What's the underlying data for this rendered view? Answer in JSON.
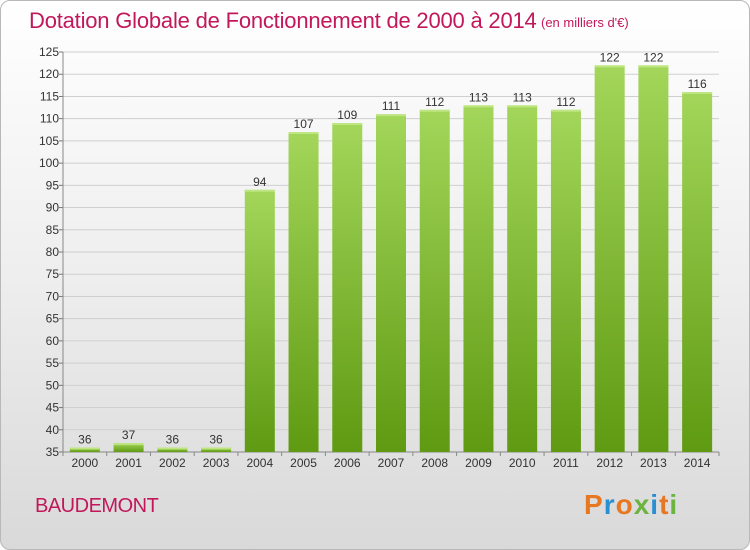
{
  "header": {
    "title": "Dotation Globale de Fonctionnement de 2000 à 2014",
    "unit": "(en milliers d'€)"
  },
  "footer": {
    "commune": "BAUDEMONT",
    "logo_text": "Proxiti"
  },
  "colors": {
    "title": "#c2185b",
    "bar_top": "#a3d65a",
    "bar_bottom": "#5f9a12",
    "grid": "#cfcfcf",
    "logo": [
      "#e87722",
      "#2a8fd0",
      "#e87722",
      "#6cb33f",
      "#2a8fd0",
      "#e87722",
      "#6cb33f"
    ]
  },
  "chart_data": {
    "type": "bar",
    "categories": [
      "2000",
      "2001",
      "2002",
      "2003",
      "2004",
      "2005",
      "2006",
      "2007",
      "2008",
      "2009",
      "2010",
      "2011",
      "2012",
      "2013",
      "2014"
    ],
    "values": [
      36,
      37,
      36,
      36,
      94,
      107,
      109,
      111,
      112,
      113,
      113,
      112,
      122,
      122,
      116
    ],
    "ylim": [
      35,
      125
    ],
    "yticks": [
      35,
      40,
      45,
      50,
      55,
      60,
      65,
      70,
      75,
      80,
      85,
      90,
      95,
      100,
      105,
      110,
      115,
      120,
      125
    ],
    "grid": true,
    "title": "Dotation Globale de Fonctionnement de 2000 à 2014",
    "xlabel": "",
    "ylabel": ""
  }
}
